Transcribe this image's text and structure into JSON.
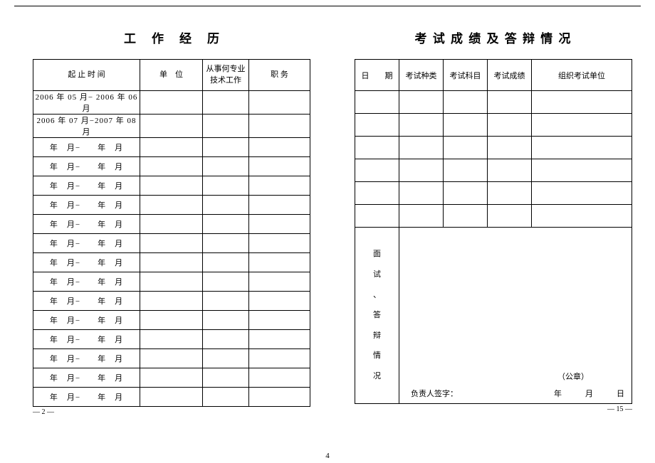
{
  "left": {
    "title": "工作经历",
    "headers": {
      "time": "起 止 时 间",
      "unit": "单　位",
      "spec": "从事何专业\n技术工作",
      "duty": "职 务"
    },
    "rows": [
      "2006 年 05 月− 2006 年 06 月",
      "2006 年 07 月−2007 年 08 月",
      "年　月−　　年　月",
      "年　月−　　年　月",
      "年　月−　　年　月",
      "年　月−　　年　月",
      "年　月−　　年　月",
      "年　月−　　年　月",
      "年　月−　　年　月",
      "年　月−　　年　月",
      "年　月−　　年　月",
      "年　月−　　年　月",
      "年　月−　　年　月",
      "年　月−　　年　月",
      "年　月−　　年　月",
      "年　月−　　年　月"
    ],
    "page_num": "— 2 —"
  },
  "right": {
    "title": "考 试 成 绩 及 答 辩 情 况",
    "headers": {
      "date": "日　　期",
      "type": "考试种类",
      "subj": "考试科目",
      "score": "考试成绩",
      "org": "组织考试单位"
    },
    "blank_rows": 6,
    "interview_label": "面\n试\n、\n答\n辩\n情\n况",
    "seal": "（公章）",
    "sign": "负责人签字：",
    "date_line": "年　　　月　　　日",
    "page_num": "— 15 —"
  },
  "footer_page": "4"
}
